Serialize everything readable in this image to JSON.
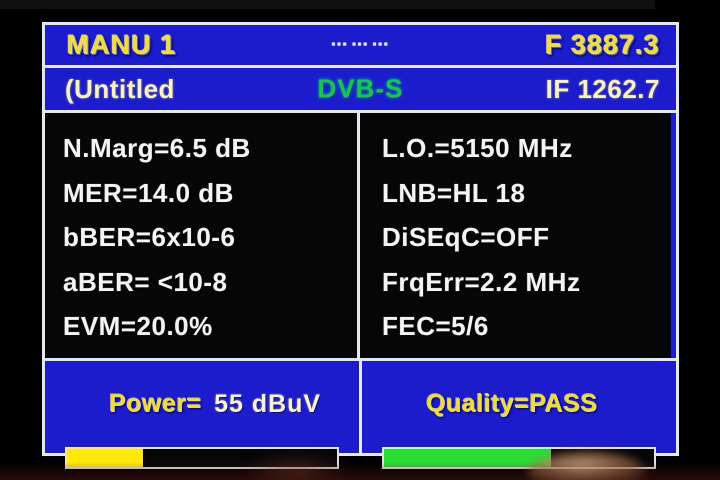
{
  "header": {
    "title": "MANU 1",
    "status_glyphs": "■■■ ■■■ ■■■",
    "frequency": "F 3887.3",
    "channel_name": "(Untitled",
    "standard": "DVB-S",
    "if_frequency": "IF 1262.7"
  },
  "measurements": {
    "left": [
      "N.Marg=6.5 dB",
      "MER=14.0 dB",
      "bBER=6x10-6",
      "aBER= <10-8",
      "EVM=20.0%"
    ],
    "right": [
      "L.O.=5150 MHz",
      "LNB=HL 18",
      "DiSEqC=OFF",
      "FrqErr=2.2 MHz",
      "FEC=5/6"
    ]
  },
  "power": {
    "label": "Power=",
    "value": "55 dBuV",
    "percent": 28,
    "bar_color": "#ffe80a"
  },
  "quality": {
    "label": "Quality=",
    "value": "PASS",
    "percent": 62,
    "bar_color": "#2bdb34"
  },
  "colors": {
    "panel_blue": "#1c1ccd",
    "border_white": "#e6e8f0",
    "accent_yellow": "#f2dd30",
    "standard_green": "#1dc351",
    "text_white": "#f4f4f4"
  }
}
